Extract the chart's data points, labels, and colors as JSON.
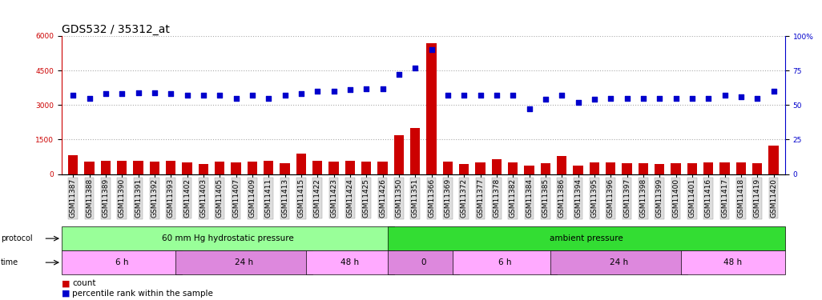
{
  "title": "GDS532 / 35312_at",
  "samples": [
    "GSM11387",
    "GSM11388",
    "GSM11389",
    "GSM11390",
    "GSM11391",
    "GSM11392",
    "GSM11393",
    "GSM11402",
    "GSM11403",
    "GSM11405",
    "GSM11407",
    "GSM11409",
    "GSM11411",
    "GSM11413",
    "GSM11415",
    "GSM11422",
    "GSM11423",
    "GSM11424",
    "GSM11425",
    "GSM11426",
    "GSM11350",
    "GSM11351",
    "GSM11366",
    "GSM11369",
    "GSM11372",
    "GSM11377",
    "GSM11378",
    "GSM11382",
    "GSM11384",
    "GSM11385",
    "GSM11386",
    "GSM11394",
    "GSM11395",
    "GSM11396",
    "GSM11397",
    "GSM11398",
    "GSM11399",
    "GSM11400",
    "GSM11401",
    "GSM11416",
    "GSM11417",
    "GSM11418",
    "GSM11419",
    "GSM11420"
  ],
  "count_values": [
    820,
    530,
    570,
    560,
    560,
    550,
    570,
    510,
    420,
    530,
    490,
    530,
    570,
    480,
    900,
    560,
    540,
    570,
    540,
    540,
    1700,
    2000,
    5700,
    530,
    430,
    490,
    650,
    490,
    350,
    480,
    800,
    350,
    490,
    490,
    460,
    460,
    440,
    460,
    460,
    490,
    490,
    490,
    470,
    1250
  ],
  "percentile_values": [
    57,
    55,
    58,
    58,
    59,
    59,
    58,
    57,
    57,
    57,
    55,
    57,
    55,
    57,
    58,
    60,
    60,
    61,
    62,
    62,
    72,
    77,
    90,
    57,
    57,
    57,
    57,
    57,
    47,
    54,
    57,
    52,
    54,
    55,
    55,
    55,
    55,
    55,
    55,
    55,
    57,
    56,
    55,
    60
  ],
  "left_ylim": [
    0,
    6000
  ],
  "left_yticks": [
    0,
    1500,
    3000,
    4500,
    6000
  ],
  "right_ylim": [
    0,
    100
  ],
  "right_yticks": [
    0,
    25,
    50,
    75,
    100
  ],
  "bar_color": "#cc0000",
  "dot_color": "#0000cc",
  "protocol_sections": [
    {
      "label": "60 mm Hg hydrostatic pressure",
      "start": 0,
      "end": 20,
      "color": "#99ff99"
    },
    {
      "label": "ambient pressure",
      "start": 20,
      "end": 44,
      "color": "#33dd33"
    }
  ],
  "time_sections": [
    {
      "label": "6 h",
      "start": 0,
      "end": 7,
      "color": "#ffaaff"
    },
    {
      "label": "24 h",
      "start": 7,
      "end": 15,
      "color": "#dd88dd"
    },
    {
      "label": "48 h",
      "start": 15,
      "end": 20,
      "color": "#ffaaff"
    },
    {
      "label": "0",
      "start": 20,
      "end": 24,
      "color": "#dd88dd"
    },
    {
      "label": "6 h",
      "start": 24,
      "end": 30,
      "color": "#ffaaff"
    },
    {
      "label": "24 h",
      "start": 30,
      "end": 38,
      "color": "#dd88dd"
    },
    {
      "label": "48 h",
      "start": 38,
      "end": 44,
      "color": "#ffaaff"
    }
  ],
  "dotted_line_color": "#aaaaaa",
  "background_color": "#ffffff",
  "plot_bg_color": "#ffffff",
  "title_fontsize": 10,
  "tick_fontsize": 6.5,
  "label_fontsize": 8
}
